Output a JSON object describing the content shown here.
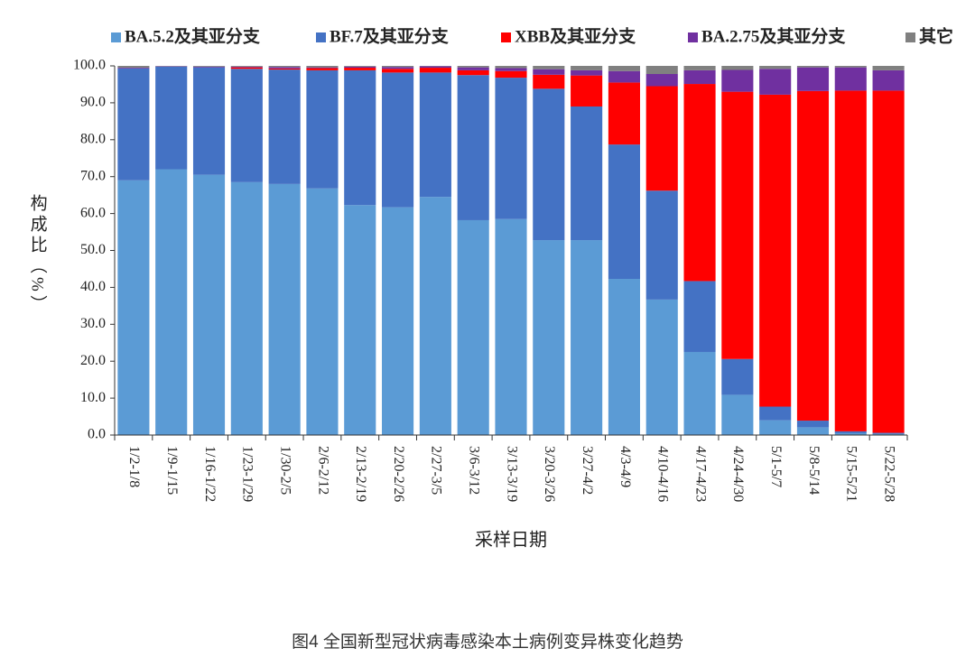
{
  "chart_data": {
    "type": "stacked_bar",
    "categories": [
      "1/2-1/8",
      "1/9-1/15",
      "1/16-1/22",
      "1/23-1/29",
      "1/30-2/5",
      "2/6-2/12",
      "2/13-2/19",
      "2/20-2/26",
      "2/27-3/5",
      "3/6-3/12",
      "3/13-3/19",
      "3/20-3/26",
      "3/27-4/2",
      "4/3-4/9",
      "4/10-4/16",
      "4/17-4/23",
      "4/24-4/30",
      "5/1-5/7",
      "5/8-5/14",
      "5/15-5/21",
      "5/22-5/28"
    ],
    "series": [
      {
        "name": "BA.5.2及其亚分支",
        "color": "#5b9bd5",
        "values": [
          69.0,
          72.0,
          70.5,
          68.5,
          68.0,
          66.8,
          62.3,
          61.7,
          64.5,
          58.2,
          58.5,
          52.8,
          52.8,
          42.3,
          36.7,
          22.5,
          10.9,
          4.0,
          2.1,
          0.5,
          0.3
        ]
      },
      {
        "name": "BF.7及其亚分支",
        "color": "#4472c4",
        "values": [
          30.3,
          27.8,
          29.1,
          30.7,
          31.0,
          32.0,
          36.5,
          36.5,
          33.7,
          39.3,
          38.3,
          41.0,
          36.2,
          36.4,
          29.5,
          19.2,
          9.7,
          3.7,
          1.8,
          0.5,
          0.3
        ]
      },
      {
        "name": "XBB及其亚分支",
        "color": "#ff0000",
        "values": [
          0,
          0,
          0,
          0.4,
          0.3,
          0.6,
          0.7,
          1.0,
          1.3,
          1.3,
          1.8,
          3.8,
          8.4,
          16.8,
          28.3,
          53.4,
          72.4,
          84.5,
          89.3,
          92.3,
          92.7
        ]
      },
      {
        "name": "BA.2.75及其亚分支",
        "color": "#7030a0",
        "values": [
          0.2,
          0.1,
          0.2,
          0.2,
          0.4,
          0.2,
          0.3,
          0.5,
          0.4,
          0.8,
          0.8,
          1.5,
          1.4,
          3.1,
          3.3,
          3.7,
          5.9,
          7.0,
          6.4,
          6.3,
          5.5
        ]
      },
      {
        "name": "其它",
        "color": "#808080",
        "values": [
          0.5,
          0.1,
          0.2,
          0.2,
          0.3,
          0.4,
          0.2,
          0.3,
          0.1,
          0.4,
          0.6,
          0.9,
          1.2,
          1.4,
          2.2,
          1.2,
          1.1,
          0.8,
          0.4,
          0.4,
          1.2
        ]
      }
    ],
    "ylim": [
      0,
      100
    ],
    "yticks": [
      {
        "value": 0,
        "label": "0.0"
      },
      {
        "value": 10,
        "label": "10.0"
      },
      {
        "value": 20,
        "label": "20.0"
      },
      {
        "value": 30,
        "label": "30.0"
      },
      {
        "value": 40,
        "label": "40.0"
      },
      {
        "value": 50,
        "label": "50.0"
      },
      {
        "value": 60,
        "label": "60.0"
      },
      {
        "value": 70,
        "label": "70.0"
      },
      {
        "value": 80,
        "label": "80.0"
      },
      {
        "value": 90,
        "label": "90.0"
      },
      {
        "value": 100,
        "label": "100.0"
      }
    ],
    "ylabel": "构成比（%）",
    "xlabel": "采样日期",
    "legend": "top",
    "caption": "图4 全国新型冠状病毒感染本土病例变异株变化趋势"
  }
}
